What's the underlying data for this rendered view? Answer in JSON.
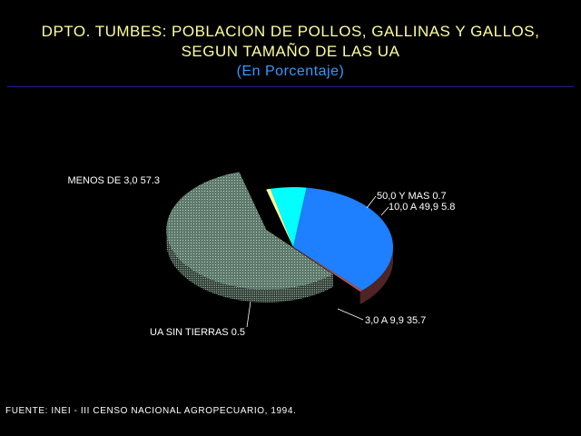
{
  "header": {
    "title_line1": "DPTO. TUMBES: POBLACION DE POLLOS, GALLINAS Y GALLOS,",
    "title_line2": "SEGUN TAMAÑO DE LAS UA",
    "subtitle": "(En Porcentaje)"
  },
  "chart_data": {
    "type": "pie",
    "title": "DPTO. TUMBES: POBLACION DE POLLOS, GALLINAS Y GALLOS, SEGUN TAMAÑO DE LAS UA",
    "subtitle": "(En Porcentaje)",
    "slices": [
      {
        "label": "MENOS DE 3,0",
        "value": 57.3,
        "display": "57.3",
        "color": "#7A9A88",
        "exploded": true
      },
      {
        "label": "50,0 Y MAS",
        "value": 0.7,
        "display": "0.7",
        "color": "#FFFF99",
        "exploded": false
      },
      {
        "label": "10,0 A 49,9",
        "value": 5.8,
        "display": "5.8",
        "color": "#00FFFF",
        "exploded": false
      },
      {
        "label": "3,0 A 9,9",
        "value": 35.7,
        "display": "35.7",
        "color": "#1E7FFF",
        "exploded": false
      },
      {
        "label": "UA SIN TIERRAS",
        "value": 0.5,
        "display": "0.5",
        "color": "#B05050",
        "exploded": false
      }
    ]
  },
  "footer": {
    "source": "FUENTE: INEI - III CENSO NACIONAL AGROPECUARIO, 1994."
  }
}
